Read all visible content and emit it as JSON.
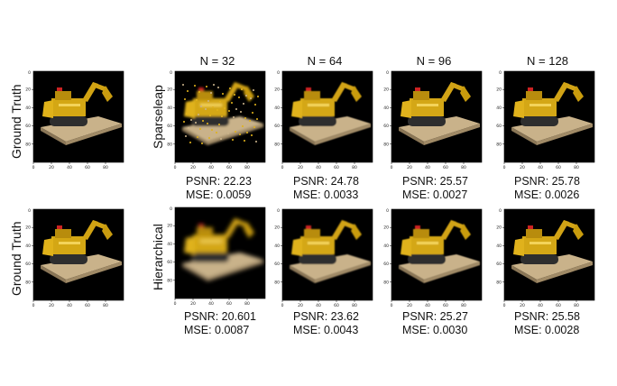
{
  "columns": [
    "N = 32",
    "N = 64",
    "N = 96",
    "N = 128"
  ],
  "rows": [
    {
      "ground_truth_label": "Ground Truth",
      "method_label": "Sparseleap",
      "results": [
        {
          "psnr": "PSNR: 22.23",
          "mse": "MSE: 0.0059"
        },
        {
          "psnr": "PSNR: 24.78",
          "mse": "MSE: 0.0033"
        },
        {
          "psnr": "PSNR: 25.57",
          "mse": "MSE: 0.0027"
        },
        {
          "psnr": "PSNR: 25.78",
          "mse": "MSE: 0.0026"
        }
      ]
    },
    {
      "ground_truth_label": "Ground Truth",
      "method_label": "Hierarchical",
      "results": [
        {
          "psnr": "PSNR: 20.601",
          "mse": "MSE: 0.0087"
        },
        {
          "psnr": "PSNR: 23.62",
          "mse": "MSE: 0.0043"
        },
        {
          "psnr": "PSNR: 25.27",
          "mse": "MSE: 0.0030"
        },
        {
          "psnr": "PSNR: 25.58",
          "mse": "MSE: 0.0028"
        }
      ]
    }
  ],
  "axis_ticks": {
    "x": [
      "0",
      "20",
      "40",
      "60",
      "80"
    ],
    "y": [
      "0",
      "20",
      "40",
      "60",
      "80"
    ]
  },
  "image_subject": "lego-bulldozer-render"
}
